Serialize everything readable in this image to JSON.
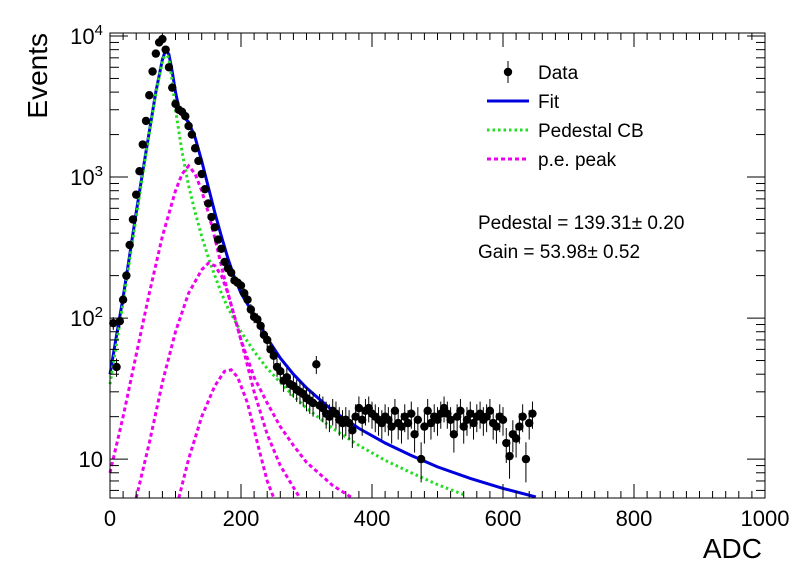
{
  "chart_data": {
    "type": "scatter",
    "xlabel": "ADC",
    "ylabel": "Events",
    "xlim": [
      0,
      1000
    ],
    "ylim": [
      5.3,
      10500
    ],
    "yscale": "log",
    "x_ticks": [
      "0",
      "200",
      "400",
      "600",
      "800",
      "1000"
    ],
    "y_ticks": [
      {
        "value": 10,
        "base": "10",
        "exp": ""
      },
      {
        "value": 100,
        "base": "10",
        "exp": "2"
      },
      {
        "value": 1000,
        "base": "10",
        "exp": "3"
      },
      {
        "value": 10000,
        "base": "10",
        "exp": "4"
      }
    ],
    "legend": {
      "placement": "top-right",
      "items": [
        {
          "label": "Data",
          "kind": "marker",
          "color": "#000000"
        },
        {
          "label": "Fit",
          "kind": "solid",
          "color": "#0000dd"
        },
        {
          "label": "Pedestal CB",
          "kind": "dotted",
          "color": "#22dd22"
        },
        {
          "label": "p.e. peak",
          "kind": "dashed",
          "color": "#ee00ee"
        }
      ]
    },
    "annotations": [
      {
        "text": "Pedestal = 139.31± 0.20"
      },
      {
        "text": "Gain = 53.98± 0.52"
      }
    ],
    "series": [
      {
        "name": "Data",
        "style": "points-errorbars",
        "color": "#000000",
        "points": [
          [
            5,
            92
          ],
          [
            10,
            45
          ],
          [
            15,
            95
          ],
          [
            20,
            135
          ],
          [
            25,
            200
          ],
          [
            30,
            330
          ],
          [
            35,
            500
          ],
          [
            40,
            750
          ],
          [
            45,
            1100
          ],
          [
            50,
            1700
          ],
          [
            55,
            2500
          ],
          [
            60,
            3800
          ],
          [
            65,
            5600
          ],
          [
            70,
            7500
          ],
          [
            75,
            9000
          ],
          [
            80,
            9500
          ],
          [
            85,
            8000
          ],
          [
            90,
            6000
          ],
          [
            95,
            4300
          ],
          [
            100,
            3300
          ],
          [
            105,
            3000
          ],
          [
            110,
            2900
          ],
          [
            115,
            2700
          ],
          [
            120,
            2300
          ],
          [
            125,
            2000
          ],
          [
            130,
            1600
          ],
          [
            135,
            1300
          ],
          [
            140,
            1050
          ],
          [
            145,
            820
          ],
          [
            150,
            650
          ],
          [
            155,
            520
          ],
          [
            160,
            440
          ],
          [
            165,
            360
          ],
          [
            170,
            310
          ],
          [
            175,
            250
          ],
          [
            180,
            225
          ],
          [
            185,
            210
          ],
          [
            190,
            185
          ],
          [
            195,
            178
          ],
          [
            200,
            170
          ],
          [
            205,
            150
          ],
          [
            210,
            135
          ],
          [
            215,
            115
          ],
          [
            220,
            102
          ],
          [
            225,
            98
          ],
          [
            230,
            88
          ],
          [
            235,
            76
          ],
          [
            240,
            70
          ],
          [
            245,
            60
          ],
          [
            250,
            54
          ],
          [
            255,
            45
          ],
          [
            260,
            42
          ],
          [
            265,
            36
          ],
          [
            270,
            38
          ],
          [
            275,
            34
          ],
          [
            280,
            33
          ],
          [
            285,
            31
          ],
          [
            290,
            30
          ],
          [
            295,
            29
          ],
          [
            300,
            27
          ],
          [
            305,
            26
          ],
          [
            310,
            25
          ],
          [
            315,
            47
          ],
          [
            320,
            24
          ],
          [
            325,
            23
          ],
          [
            330,
            21
          ],
          [
            335,
            20
          ],
          [
            340,
            22
          ],
          [
            345,
            21
          ],
          [
            350,
            19
          ],
          [
            355,
            18
          ],
          [
            360,
            19
          ],
          [
            365,
            18
          ],
          [
            370,
            16
          ],
          [
            375,
            20
          ],
          [
            380,
            23
          ],
          [
            385,
            19
          ],
          [
            390,
            22
          ],
          [
            395,
            23
          ],
          [
            400,
            21
          ],
          [
            405,
            20
          ],
          [
            410,
            19
          ],
          [
            415,
            18
          ],
          [
            420,
            20
          ],
          [
            425,
            19
          ],
          [
            430,
            17
          ],
          [
            435,
            22
          ],
          [
            440,
            18
          ],
          [
            445,
            17
          ],
          [
            450,
            20
          ],
          [
            455,
            18
          ],
          [
            460,
            21
          ],
          [
            465,
            15
          ],
          [
            470,
            19
          ],
          [
            475,
            10
          ],
          [
            480,
            17
          ],
          [
            485,
            22
          ],
          [
            490,
            18
          ],
          [
            495,
            20
          ],
          [
            500,
            19
          ],
          [
            505,
            21
          ],
          [
            510,
            23
          ],
          [
            515,
            21
          ],
          [
            520,
            19
          ],
          [
            525,
            15
          ],
          [
            530,
            20
          ],
          [
            535,
            22
          ],
          [
            540,
            17
          ],
          [
            545,
            19
          ],
          [
            550,
            21
          ],
          [
            555,
            18
          ],
          [
            560,
            20
          ],
          [
            565,
            21
          ],
          [
            570,
            19
          ],
          [
            575,
            20
          ],
          [
            580,
            22
          ],
          [
            585,
            18
          ],
          [
            590,
            17
          ],
          [
            595,
            20
          ],
          [
            600,
            19
          ],
          [
            605,
            13
          ],
          [
            610,
            10.5
          ],
          [
            615,
            15
          ],
          [
            620,
            14
          ],
          [
            625,
            17
          ],
          [
            630,
            20
          ],
          [
            635,
            10
          ],
          [
            640,
            18
          ],
          [
            645,
            21
          ]
        ]
      },
      {
        "name": "Fit",
        "style": "solid",
        "color": "#0000dd",
        "points": [
          [
            0,
            40
          ],
          [
            10,
            75
          ],
          [
            20,
            140
          ],
          [
            30,
            280
          ],
          [
            40,
            560
          ],
          [
            50,
            1100
          ],
          [
            60,
            2100
          ],
          [
            70,
            4000
          ],
          [
            80,
            6800
          ],
          [
            85,
            8000
          ],
          [
            90,
            7400
          ],
          [
            95,
            5600
          ],
          [
            100,
            4000
          ],
          [
            105,
            3100
          ],
          [
            110,
            2750
          ],
          [
            120,
            2450
          ],
          [
            130,
            1900
          ],
          [
            140,
            1300
          ],
          [
            150,
            850
          ],
          [
            160,
            560
          ],
          [
            170,
            380
          ],
          [
            180,
            265
          ],
          [
            190,
            195
          ],
          [
            200,
            150
          ],
          [
            220,
            105
          ],
          [
            240,
            72
          ],
          [
            260,
            52
          ],
          [
            280,
            40
          ],
          [
            300,
            32
          ],
          [
            340,
            22
          ],
          [
            380,
            16.5
          ],
          [
            420,
            13
          ],
          [
            460,
            10.6
          ],
          [
            500,
            8.8
          ],
          [
            550,
            7.3
          ],
          [
            600,
            6.2
          ],
          [
            650,
            5.4
          ]
        ]
      },
      {
        "name": "Pedestal CB",
        "style": "dotted",
        "color": "#22dd22",
        "points": [
          [
            0,
            34
          ],
          [
            10,
            66
          ],
          [
            20,
            130
          ],
          [
            30,
            260
          ],
          [
            40,
            520
          ],
          [
            50,
            1050
          ],
          [
            60,
            2050
          ],
          [
            70,
            3900
          ],
          [
            80,
            6600
          ],
          [
            85,
            7700
          ],
          [
            90,
            6900
          ],
          [
            95,
            4800
          ],
          [
            100,
            3000
          ],
          [
            110,
            1500
          ],
          [
            120,
            870
          ],
          [
            130,
            560
          ],
          [
            140,
            380
          ],
          [
            150,
            270
          ],
          [
            160,
            200
          ],
          [
            170,
            150
          ],
          [
            180,
            118
          ],
          [
            200,
            80
          ],
          [
            220,
            58
          ],
          [
            240,
            44
          ],
          [
            260,
            35
          ],
          [
            280,
            28
          ],
          [
            300,
            23
          ],
          [
            340,
            16.5
          ],
          [
            380,
            12.5
          ],
          [
            420,
            9.8
          ],
          [
            460,
            8
          ],
          [
            500,
            6.6
          ],
          [
            540,
            5.6
          ]
        ]
      },
      {
        "name": "p.e. peak 1",
        "style": "dashed",
        "color": "#ee00ee",
        "points": [
          [
            0,
            8
          ],
          [
            20,
            20
          ],
          [
            40,
            55
          ],
          [
            60,
            150
          ],
          [
            80,
            380
          ],
          [
            100,
            800
          ],
          [
            110,
            1050
          ],
          [
            120,
            1200
          ],
          [
            130,
            1050
          ],
          [
            140,
            800
          ],
          [
            150,
            560
          ],
          [
            160,
            370
          ],
          [
            180,
            150
          ],
          [
            200,
            70
          ],
          [
            220,
            38
          ],
          [
            240,
            25
          ],
          [
            260,
            17
          ],
          [
            280,
            12.5
          ],
          [
            300,
            9.5
          ],
          [
            340,
            6.5
          ],
          [
            370,
            5.3
          ]
        ]
      },
      {
        "name": "p.e. peak 2",
        "style": "dashed",
        "color": "#ee00ee",
        "points": [
          [
            40,
            5.3
          ],
          [
            60,
            13
          ],
          [
            80,
            35
          ],
          [
            100,
            80
          ],
          [
            120,
            150
          ],
          [
            140,
            220
          ],
          [
            150,
            245
          ],
          [
            160,
            235
          ],
          [
            170,
            200
          ],
          [
            180,
            150
          ],
          [
            200,
            70
          ],
          [
            220,
            30
          ],
          [
            240,
            15
          ],
          [
            260,
            9
          ],
          [
            280,
            6.3
          ],
          [
            290,
            5.3
          ]
        ]
      },
      {
        "name": "p.e. peak 3",
        "style": "dashed",
        "color": "#ee00ee",
        "points": [
          [
            105,
            5.3
          ],
          [
            120,
            10
          ],
          [
            140,
            20
          ],
          [
            160,
            33
          ],
          [
            175,
            42
          ],
          [
            185,
            43
          ],
          [
            195,
            38
          ],
          [
            210,
            25
          ],
          [
            225,
            13
          ],
          [
            240,
            7
          ],
          [
            250,
            5.3
          ]
        ]
      }
    ]
  }
}
